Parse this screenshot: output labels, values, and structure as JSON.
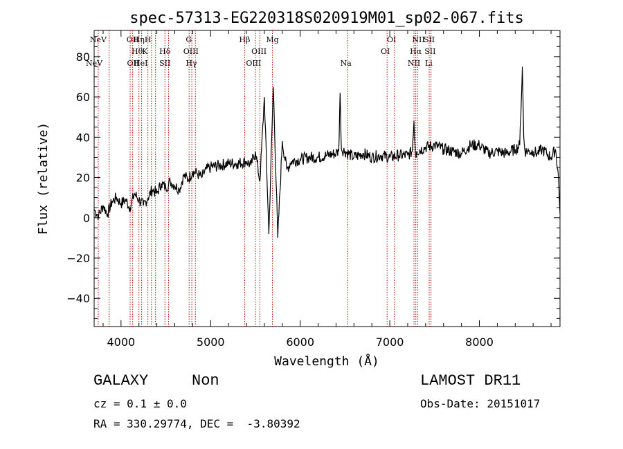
{
  "chart_data": {
    "type": "line",
    "title": "spec-57313-EG220318S020919M01_sp02-067.fits",
    "xlabel": "Wavelength (Å)",
    "ylabel": "Flux (relative)",
    "xlim": [
      3700,
      8900
    ],
    "ylim": [
      -54,
      93
    ],
    "x_ticks": [
      4000,
      5000,
      6000,
      7000,
      8000
    ],
    "y_ticks": [
      -40,
      -20,
      0,
      20,
      40,
      60,
      80
    ],
    "grid": false,
    "legend": "none",
    "series_color": "#000000",
    "line_marker_color": "#cc0000",
    "spectrum": {
      "x": [
        3700,
        3750,
        3800,
        3850,
        3900,
        3950,
        4000,
        4050,
        4100,
        4150,
        4200,
        4250,
        4300,
        4350,
        4400,
        4450,
        4500,
        4550,
        4600,
        4650,
        4700,
        4750,
        4800,
        4850,
        4900,
        4950,
        5000,
        5100,
        5200,
        5300,
        5400,
        5450,
        5500,
        5550,
        5600,
        5650,
        5700,
        5750,
        5800,
        5850,
        5900,
        6000,
        6100,
        6200,
        6300,
        6400,
        6430,
        6445,
        6460,
        6500,
        6600,
        6700,
        6800,
        6900,
        7000,
        7100,
        7200,
        7250,
        7270,
        7290,
        7300,
        7400,
        7500,
        7600,
        7700,
        7800,
        7900,
        8000,
        8100,
        8200,
        8300,
        8400,
        8450,
        8480,
        8495,
        8510,
        8550,
        8600,
        8650,
        8700,
        8750,
        8800,
        8850,
        8880,
        8900
      ],
      "y": [
        4,
        1,
        6,
        2,
        8,
        10,
        7,
        9,
        5,
        12,
        9,
        6,
        10,
        14,
        12,
        17,
        15,
        18,
        16,
        14,
        21,
        19,
        23,
        22,
        20,
        24,
        25,
        26,
        27,
        27,
        28,
        26,
        33,
        18,
        60,
        -8,
        65,
        -10,
        38,
        24,
        28,
        29,
        30,
        30,
        31,
        32,
        33,
        62,
        34,
        33,
        30,
        32,
        30,
        31,
        30,
        31,
        31,
        33,
        48,
        30,
        33,
        35,
        36,
        34,
        33,
        32,
        36,
        36,
        32,
        33,
        32,
        34,
        36,
        75,
        40,
        33,
        33,
        33,
        32,
        34,
        32,
        30,
        34,
        22,
        2
      ]
    },
    "spectral_lines": {
      "top": [
        {
          "label": "NeV",
          "x": 3746
        },
        {
          "label": "OII",
          "x": 4130
        },
        {
          "label": "Hη",
          "x": 4200
        },
        {
          "label": "H",
          "x": 4300
        },
        {
          "label": "G",
          "x": 4757
        },
        {
          "label": "Hβ",
          "x": 5380
        },
        {
          "label": "Mg",
          "x": 5690
        },
        {
          "label": "OI",
          "x": 7020
        },
        {
          "label": "NII",
          "x": 7320
        },
        {
          "label": "SII",
          "x": 7440
        }
      ],
      "mid": [
        {
          "label": "Hθ",
          "x": 4180
        },
        {
          "label": "K",
          "x": 4267
        },
        {
          "label": "Hδ",
          "x": 4490
        },
        {
          "label": "OIII",
          "x": 4780
        },
        {
          "label": "OIII",
          "x": 5540
        },
        {
          "label": "OI",
          "x": 6950
        },
        {
          "label": "Hα",
          "x": 7290
        },
        {
          "label": "SII",
          "x": 7450
        }
      ],
      "bottom": [
        {
          "label": "NeV",
          "x": 3646
        },
        {
          "label": "OII",
          "x": 4135
        },
        {
          "label": "HeI",
          "x": 4220
        },
        {
          "label": "SII",
          "x": 4490
        },
        {
          "label": "Hγ",
          "x": 4785
        },
        {
          "label": "OIII",
          "x": 5480
        },
        {
          "label": "Na",
          "x": 6510
        },
        {
          "label": "NII",
          "x": 7270
        },
        {
          "label": "Li",
          "x": 7435
        }
      ],
      "marker_positions": [
        3746,
        3868,
        4102,
        4130,
        4200,
        4230,
        4300,
        4340,
        4385,
        4490,
        4530,
        4760,
        4790,
        4830,
        5380,
        5500,
        5550,
        5690,
        6530,
        6970,
        7050,
        7270,
        7290,
        7310,
        7440,
        7460
      ]
    }
  },
  "footer": {
    "object_type": "GALAXY",
    "subclass": "Non",
    "survey": "LAMOST DR11",
    "cz": "cz = 0.1 ± 0.0",
    "obs_date": "Obs-Date: 20151017",
    "coords": "RA = 330.29774, DEC =  -3.80392"
  }
}
